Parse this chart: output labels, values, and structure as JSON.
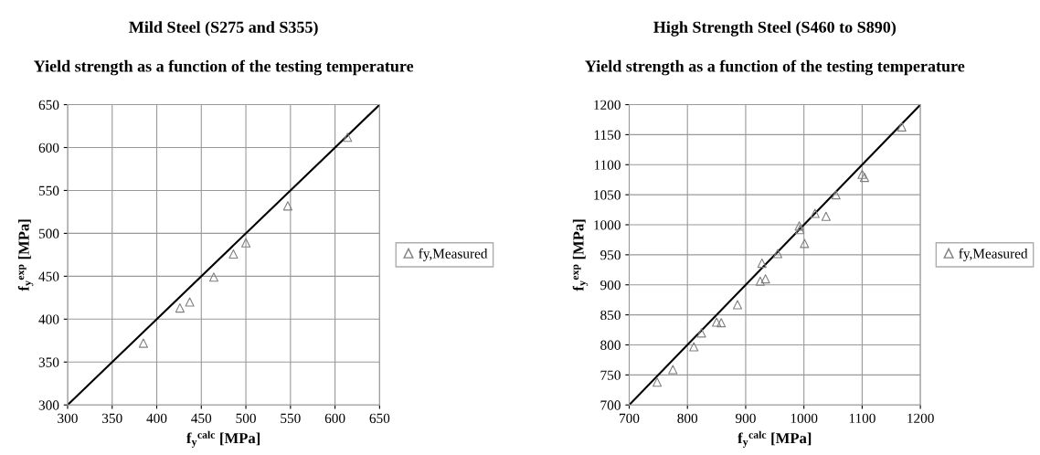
{
  "chart_data": [
    {
      "type": "scatter",
      "title": "Mild Steel (S275 and S355)",
      "subtitle": "Yield strength as a function of the testing temperature",
      "xlabel": "f$_{y}$$^{calc}$ [MPa]",
      "ylabel": "f$_{y}$$^{exp}$ [MPa]",
      "xlim": [
        300,
        650
      ],
      "ylim": [
        300,
        650
      ],
      "xticks": [
        300,
        350,
        400,
        450,
        500,
        550,
        600,
        650
      ],
      "yticks": [
        300,
        350,
        400,
        450,
        500,
        550,
        600,
        650
      ],
      "grid": true,
      "legend": "right",
      "series": [
        {
          "name": "fy,Measured",
          "color": "#808080",
          "marker": "triangle",
          "x": [
            385,
            426,
            437,
            464,
            486,
            500,
            547,
            614
          ],
          "values": [
            372,
            413,
            420,
            449,
            476,
            489,
            532,
            612
          ]
        },
        {
          "type": "line",
          "color": "#000000",
          "marker": "none",
          "line_style": "solid",
          "x": [
            300,
            650
          ],
          "values": [
            300,
            650
          ]
        }
      ]
    },
    {
      "type": "scatter",
      "title": "High Strength Steel (S460 to S890)",
      "subtitle": "Yield strength as a function of the testing temperature",
      "xlabel": "f$_{y}$$^{calc}$ [MPa]",
      "ylabel": "f$_{y}$$^{exp}$ [MPa]",
      "xlim": [
        700,
        1200
      ],
      "ylim": [
        700,
        1200
      ],
      "xticks": [
        700,
        800,
        900,
        1000,
        1100,
        1200
      ],
      "yticks": [
        700,
        750,
        800,
        850,
        900,
        950,
        1000,
        1050,
        1100,
        1150,
        1200
      ],
      "grid": true,
      "legend": "right",
      "series": [
        {
          "name": "fy,Measured",
          "color": "#808080",
          "marker": "triangle",
          "x": [
            748,
            775,
            811,
            824,
            850,
            858,
            886,
            925,
            928,
            934,
            955,
            992,
            993,
            1001,
            1019,
            1038,
            1055,
            1100,
            1104,
            1168
          ],
          "values": [
            738,
            759,
            797,
            820,
            838,
            837,
            867,
            906,
            936,
            910,
            952,
            998,
            992,
            969,
            1019,
            1014,
            1050,
            1084,
            1079,
            1163
          ]
        },
        {
          "type": "line",
          "color": "#000000",
          "marker": "none",
          "line_style": "solid",
          "x": [
            700,
            1200
          ],
          "values": [
            700,
            1200
          ]
        }
      ]
    }
  ]
}
